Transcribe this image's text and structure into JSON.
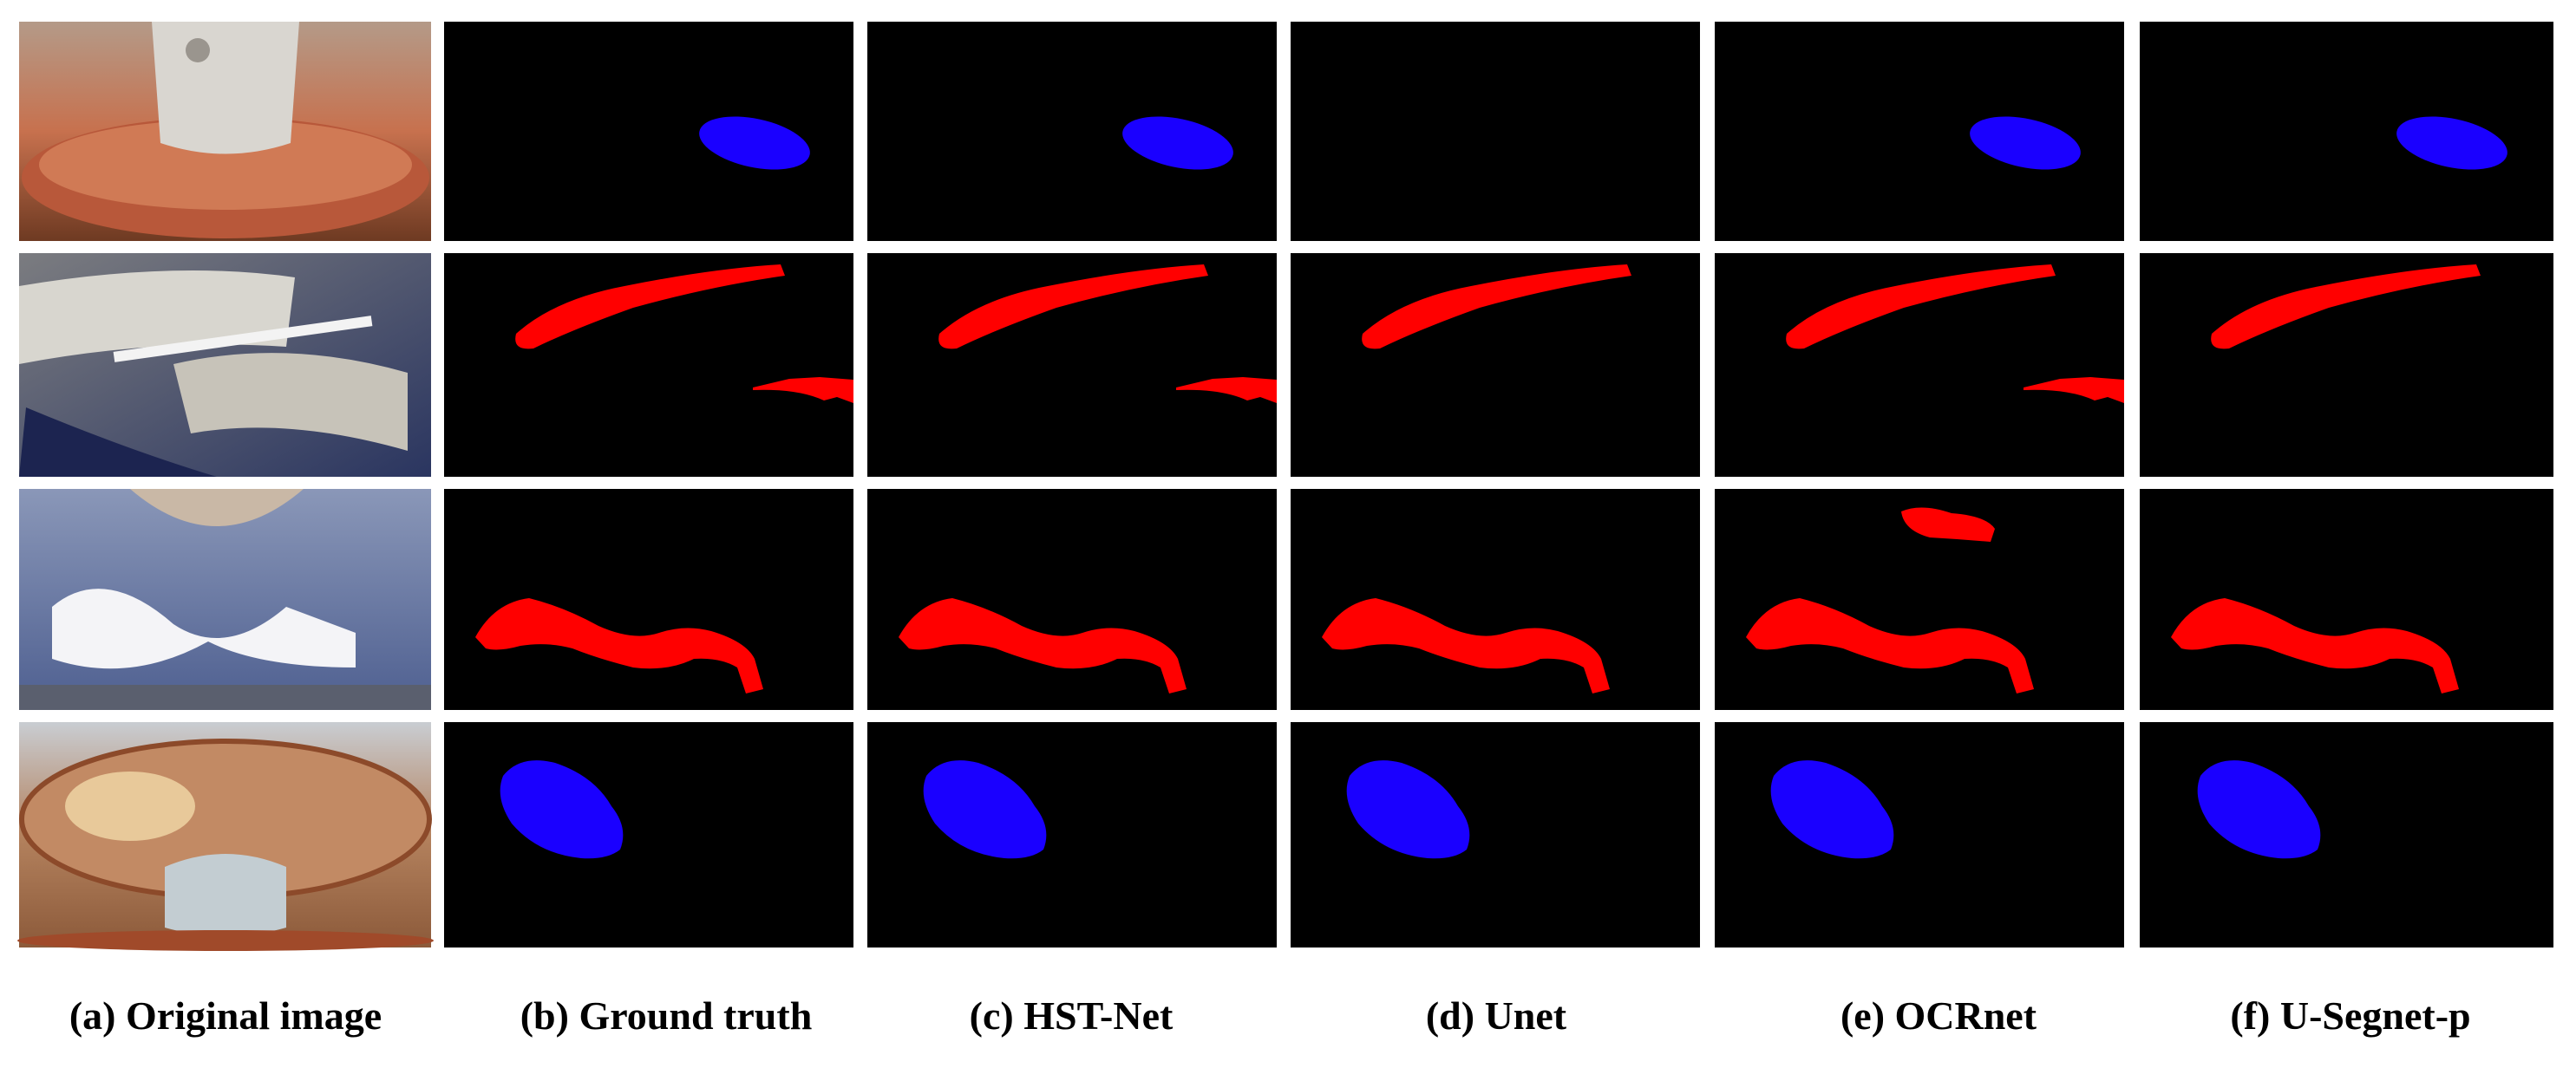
{
  "figure": {
    "columns": [
      {
        "label": "(a) Original image"
      },
      {
        "label": "(b) Ground truth"
      },
      {
        "label": "(c) HST-Net"
      },
      {
        "label": "(d) Unet"
      },
      {
        "label": "(e) OCRnet"
      },
      {
        "label": "(f) U-Segnet-p"
      }
    ],
    "rows": [
      {
        "mask_color": "#1a00ff",
        "shown_in": [
          true,
          true,
          false,
          true,
          true
        ]
      },
      {
        "mask_color": "#ff0000",
        "shown_in": [
          true,
          true,
          true,
          true,
          true
        ],
        "second_region_shown_in": [
          true,
          true,
          false,
          true,
          false
        ]
      },
      {
        "mask_color": "#ff0000",
        "shown_in": [
          true,
          true,
          true,
          true,
          true
        ],
        "extra_region_shown_in": [
          false,
          false,
          false,
          true,
          false
        ]
      },
      {
        "mask_color": "#1a00ff",
        "shown_in": [
          true,
          true,
          true,
          true,
          true
        ]
      }
    ],
    "colors": {
      "background": "#000000",
      "blue_mask": "#1a00ff",
      "red_mask": "#ff0000"
    }
  }
}
